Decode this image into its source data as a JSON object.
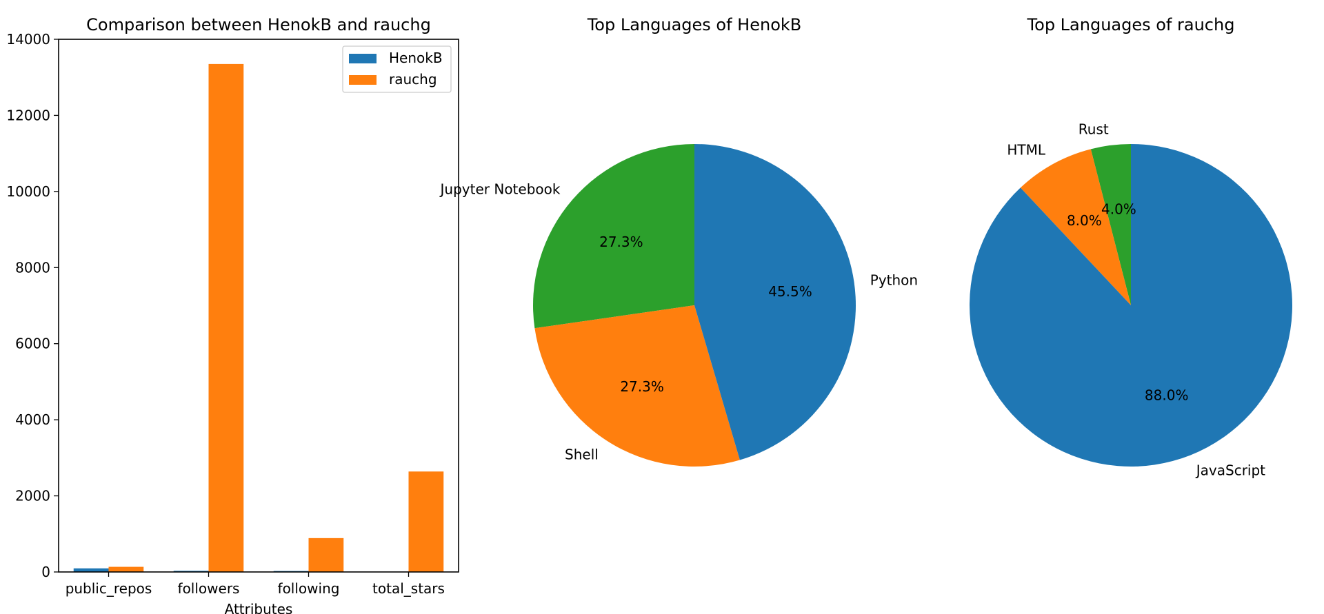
{
  "chart_data": [
    {
      "type": "bar",
      "title": "Comparison between HenokB and rauchg",
      "xlabel": "Attributes",
      "ylabel": "",
      "categories": [
        "public_repos",
        "followers",
        "following",
        "total_stars"
      ],
      "series": [
        {
          "name": "HenokB",
          "color": "#1f77b4",
          "values": [
            95,
            30,
            25,
            3
          ]
        },
        {
          "name": "rauchg",
          "color": "#ff7f0e",
          "values": [
            135,
            13350,
            890,
            2640
          ]
        }
      ],
      "ylim": [
        0,
        14000
      ],
      "yticks": [
        0,
        2000,
        4000,
        6000,
        8000,
        10000,
        12000,
        14000
      ],
      "ytick_labels": [
        "0",
        "2000",
        "4000",
        "6000",
        "8000",
        "10000",
        "12000",
        "14000"
      ],
      "legend": "upper right",
      "grid": false
    },
    {
      "type": "pie",
      "title": "Top Languages of HenokB",
      "labels": [
        "Jupyter Notebook",
        "Shell",
        "Python"
      ],
      "values": [
        27.3,
        27.3,
        45.5
      ],
      "pct_labels": [
        "27.3%",
        "27.3%",
        "45.5%"
      ],
      "colors": [
        "#2ca02c",
        "#ff7f0e",
        "#1f77b4"
      ]
    },
    {
      "type": "pie",
      "title": "Top Languages of rauchg",
      "labels": [
        "Rust",
        "HTML",
        "JavaScript"
      ],
      "values": [
        4.0,
        8.0,
        88.0
      ],
      "pct_labels": [
        "4.0%",
        "8.0%",
        "88.0%"
      ],
      "colors": [
        "#2ca02c",
        "#ff7f0e",
        "#1f77b4"
      ]
    }
  ]
}
